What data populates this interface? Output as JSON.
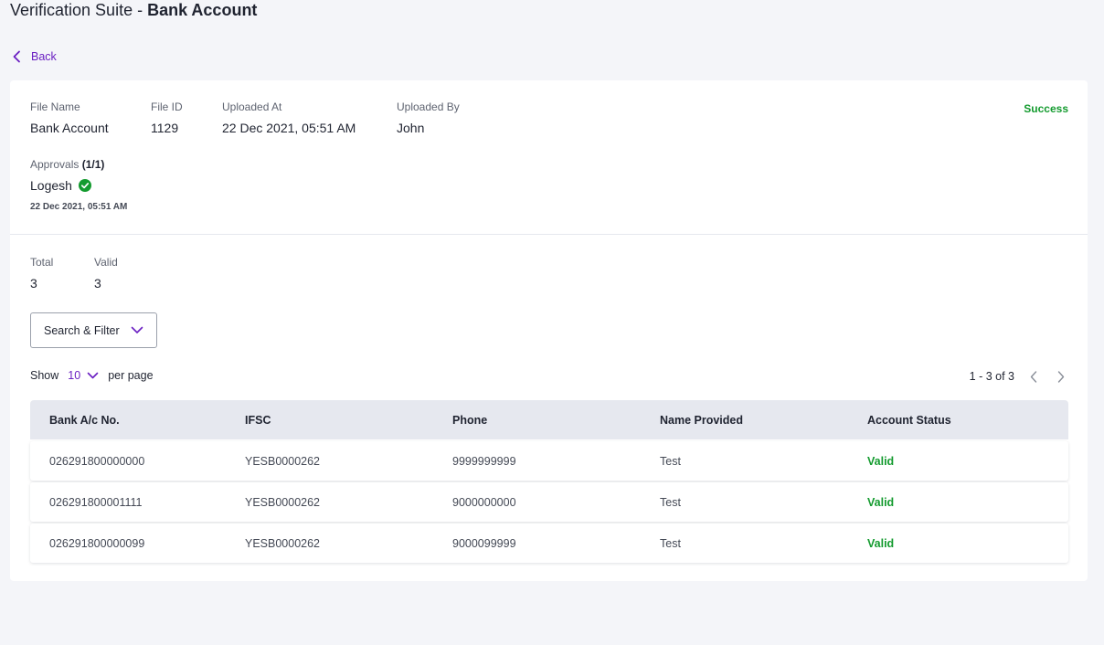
{
  "header": {
    "title_prefix": "Verification Suite - ",
    "title_main": "Bank Account"
  },
  "nav": {
    "back_label": "Back"
  },
  "file_info": {
    "status": "Success",
    "status_color": "#149b2f",
    "fields": [
      {
        "label": "File Name",
        "value": "Bank Account"
      },
      {
        "label": "File ID",
        "value": "1129"
      },
      {
        "label": "Uploaded At",
        "value": "22 Dec 2021, 05:51 AM"
      },
      {
        "label": "Uploaded By",
        "value": "John"
      }
    ]
  },
  "approvals": {
    "label": "Approvals",
    "count": "(1/1)",
    "approver": "Logesh",
    "approver_icon": "check-circle-icon",
    "approved_at": "22 Dec 2021, 05:51 AM"
  },
  "summary": {
    "total_label": "Total",
    "total_value": "3",
    "valid_label": "Valid",
    "valid_value": "3"
  },
  "filter": {
    "label": "Search & Filter",
    "icon": "chevron-down-icon"
  },
  "pagination": {
    "show_label": "Show",
    "per_page_value": "10",
    "per_page_suffix": "per page",
    "range_text": "1 - 3 of 3"
  },
  "table": {
    "columns": [
      "Bank A/c No.",
      "IFSC",
      "Phone",
      "Name Provided",
      "Account Status"
    ],
    "rows": [
      {
        "account": "026291800000000",
        "ifsc": "YESB0000262",
        "phone": "9999999999",
        "name": "Test",
        "status": "Valid"
      },
      {
        "account": "026291800001111",
        "ifsc": "YESB0000262",
        "phone": "9000000000",
        "name": "Test",
        "status": "Valid"
      },
      {
        "account": "026291800000099",
        "ifsc": "YESB0000262",
        "phone": "9000099999",
        "name": "Test",
        "status": "Valid"
      }
    ]
  },
  "colors": {
    "accent": "#6a1fc2",
    "success": "#149b2f",
    "background": "#f4f5f9"
  }
}
